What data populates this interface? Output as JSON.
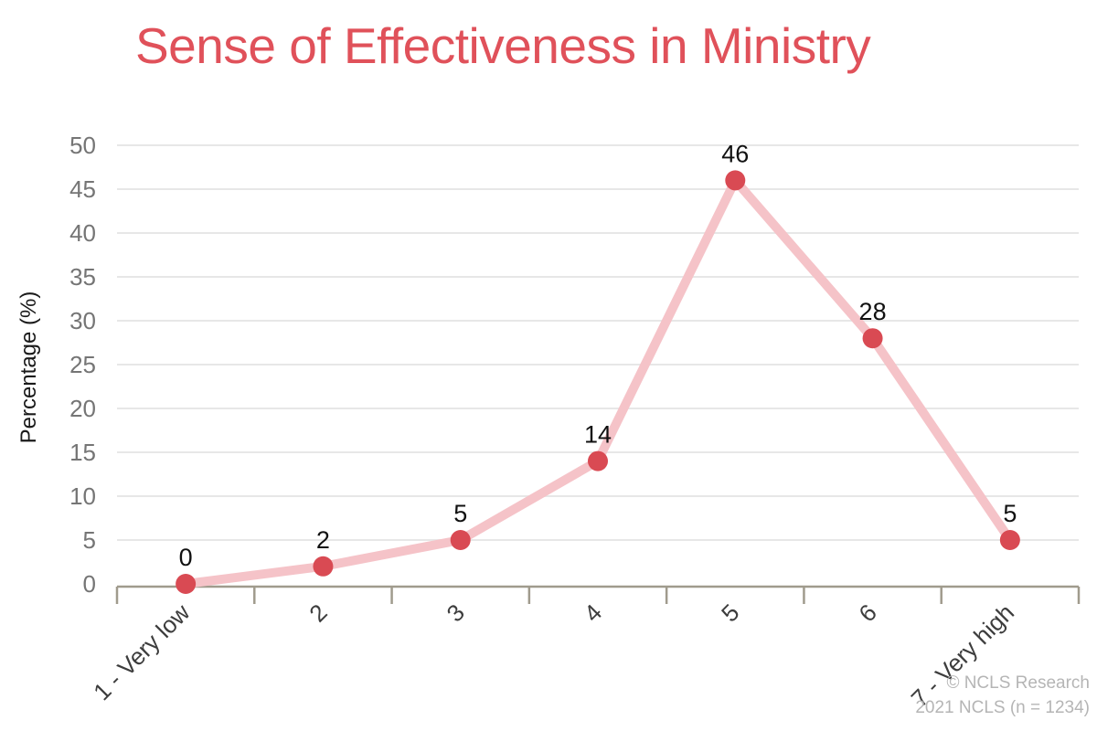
{
  "title": "Sense of Effectiveness in Ministry",
  "footer": {
    "line1": "© NCLS Research",
    "line2": "2021 NCLS (n = 1234)"
  },
  "chart_data": {
    "type": "line",
    "title": "Sense of Effectiveness in Ministry",
    "categories": [
      "1 - Very low",
      "2",
      "3",
      "4",
      "5",
      "6",
      "7 - Very high"
    ],
    "values": [
      0,
      2,
      5,
      14,
      46,
      28,
      5
    ],
    "xlabel": "",
    "ylabel": "Percentage (%)",
    "ylim": [
      0,
      50
    ],
    "ytick_step": 5,
    "yticks": [
      0,
      5,
      10,
      15,
      20,
      25,
      30,
      35,
      40,
      45,
      50
    ],
    "grid": "horizontal",
    "legend_position": "none",
    "data_labels_shown": true,
    "x_label_rotation_deg": -45,
    "colors": {
      "title": "#e0515a",
      "series_line": "#f5c3c8",
      "marker": "#d94a53",
      "gridline": "#e7e7e7",
      "axis": "#a09b8d",
      "y_tick_label": "#757575",
      "x_tick_label": "#3d3d3d",
      "data_label": "#111111",
      "axis_title": "#1a1a1a",
      "footer_text": "#b5b5b5",
      "background": "#ffffff"
    }
  }
}
